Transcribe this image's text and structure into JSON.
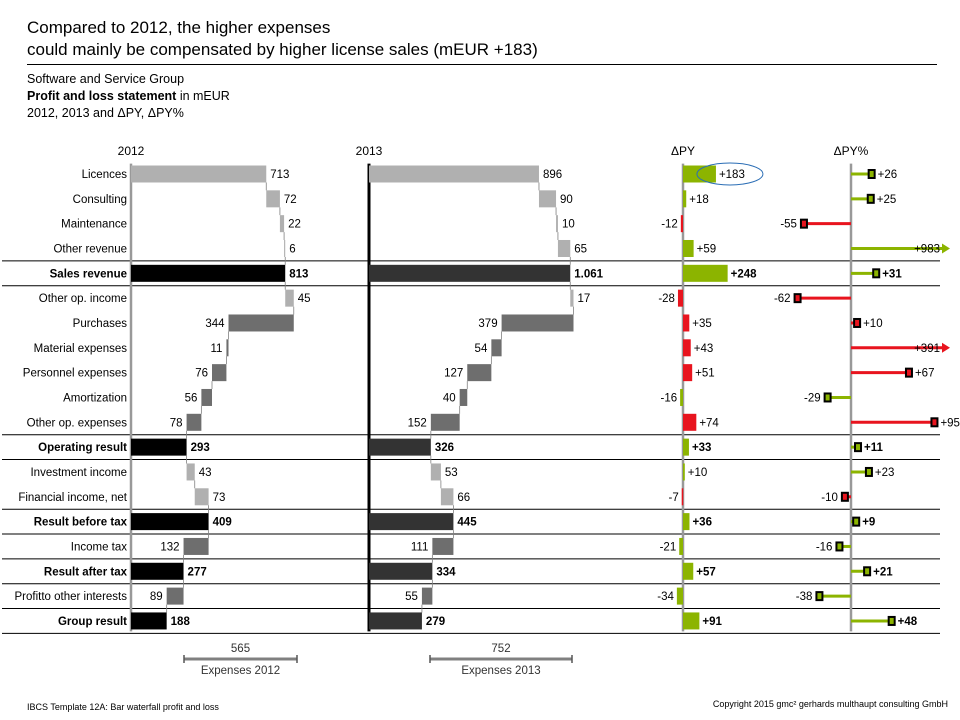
{
  "headline": {
    "line1": "Compared to 2012, the higher expenses",
    "line2": "could mainly be compensated by higher license sales (mEUR +183)"
  },
  "subtitle": {
    "company": "Software and Service Group",
    "statement_bold": "Profit and loss statement",
    "statement_unit": " in mEUR",
    "periods": "2012, 2013 and ΔPY, ΔPY%"
  },
  "footer": {
    "left": "IBCS Template  12A: Bar waterfall profit and loss",
    "right": "Copyright 2015 gmc² gerhards multhaupt consulting GmbH"
  },
  "colors": {
    "total2012": "#000000",
    "total2013": "#333333",
    "revenue": "#b0b0b0",
    "expense": "#6e6e6e",
    "positive": "#8cb400",
    "negative": "#e8141e",
    "axis": "#999999"
  },
  "chart_data": {
    "type": "bar",
    "column_headers": [
      "2012",
      "2013",
      "ΔPY",
      "ΔPY%"
    ],
    "rows": [
      {
        "label": "Licences",
        "kind": "rev",
        "v2012": 713,
        "v2013": 896,
        "l2012": "713",
        "l2013": "896",
        "dpy": 183,
        "dpyl": "+183",
        "dpyp": 26,
        "dpypl": "+26"
      },
      {
        "label": "Consulting",
        "kind": "rev",
        "v2012": 72,
        "v2013": 90,
        "l2012": "72",
        "l2013": "90",
        "dpy": 18,
        "dpyl": "+18",
        "dpyp": 25,
        "dpypl": "+25"
      },
      {
        "label": "Maintenance",
        "kind": "rev",
        "v2012": 22,
        "v2013": 10,
        "l2012": "22",
        "l2013": "10",
        "dpy": -12,
        "dpyl": "-12",
        "dpyp": -55,
        "dpypl": "-55"
      },
      {
        "label": "Other revenue",
        "kind": "rev",
        "v2012": 6,
        "v2013": 65,
        "l2012": "6",
        "l2013": "65",
        "dpy": 59,
        "dpyl": "+59",
        "dpyp": 983,
        "dpypl": "+983",
        "dpyp_clip": true
      },
      {
        "label": "Sales revenue",
        "kind": "total",
        "v2012": 813,
        "v2013": 1061,
        "l2012": "813",
        "l2013": "1.061",
        "dpy": 248,
        "dpyl": "+248",
        "dpyp": 31,
        "dpypl": "+31"
      },
      {
        "label": "Other op. income",
        "kind": "rev",
        "v2012": 45,
        "v2013": 17,
        "l2012": "45",
        "l2013": "17",
        "dpy": -28,
        "dpyl": "-28",
        "dpyp": -62,
        "dpypl": "-62"
      },
      {
        "label": "Purchases",
        "kind": "exp",
        "v2012": 344,
        "v2013": 379,
        "l2012": "344",
        "l2013": "379",
        "dpy": 35,
        "dpyl": "+35",
        "dpyp": 10,
        "dpypl": "+10"
      },
      {
        "label": "Material expenses",
        "kind": "exp",
        "v2012": 11,
        "v2013": 54,
        "l2012": "11",
        "l2013": "54",
        "dpy": 43,
        "dpyl": "+43",
        "dpyp": 391,
        "dpypl": "+391",
        "dpyp_clip": true
      },
      {
        "label": "Personnel expenses",
        "kind": "exp",
        "v2012": 76,
        "v2013": 127,
        "l2012": "76",
        "l2013": "127",
        "dpy": 51,
        "dpyl": "+51",
        "dpyp": 67,
        "dpypl": "+67"
      },
      {
        "label": "Amortization",
        "kind": "exp",
        "v2012": 56,
        "v2013": 40,
        "l2012": "56",
        "l2013": "40",
        "dpy": -16,
        "dpyl": "-16",
        "dpyp": -29,
        "dpypl": "-29"
      },
      {
        "label": "Other op. expenses",
        "kind": "exp",
        "v2012": 78,
        "v2013": 152,
        "l2012": "78",
        "l2013": "152",
        "dpy": 74,
        "dpyl": "+74",
        "dpyp": 95,
        "dpypl": "+95"
      },
      {
        "label": "Operating result",
        "kind": "total",
        "v2012": 293,
        "v2013": 326,
        "l2012": "293",
        "l2013": "326",
        "dpy": 33,
        "dpyl": "+33",
        "dpyp": 11,
        "dpypl": "+11"
      },
      {
        "label": "Investment income",
        "kind": "rev",
        "v2012": 43,
        "v2013": 53,
        "l2012": "43",
        "l2013": "53",
        "dpy": 10,
        "dpyl": "+10",
        "dpyp": 23,
        "dpypl": "+23"
      },
      {
        "label": "Financial income, net",
        "kind": "rev",
        "v2012": 73,
        "v2013": 66,
        "l2012": "73",
        "l2013": "66",
        "dpy": -7,
        "dpyl": "-7",
        "dpyp": -10,
        "dpypl": "-10"
      },
      {
        "label": "Result before tax",
        "kind": "total",
        "v2012": 409,
        "v2013": 445,
        "l2012": "409",
        "l2013": "445",
        "dpy": 36,
        "dpyl": "+36",
        "dpyp": 9,
        "dpypl": "+9"
      },
      {
        "label": "Income tax",
        "kind": "exp",
        "v2012": 132,
        "v2013": 111,
        "l2012": "132",
        "l2013": "111",
        "dpy": -21,
        "dpyl": "-21",
        "dpyp": -16,
        "dpypl": "-16"
      },
      {
        "label": "Result after tax",
        "kind": "total",
        "v2012": 277,
        "v2013": 334,
        "l2012": "277",
        "l2013": "334",
        "dpy": 57,
        "dpyl": "+57",
        "dpyp": 21,
        "dpypl": "+21"
      },
      {
        "label": "Profitto other interests",
        "kind": "exp",
        "v2012": 89,
        "v2013": 55,
        "l2012": "89",
        "l2013": "55",
        "dpy": -34,
        "dpyl": "-34",
        "dpyp": -38,
        "dpypl": "-38"
      },
      {
        "label": "Group result",
        "kind": "total",
        "v2012": 188,
        "v2013": 279,
        "l2012": "188",
        "l2013": "279",
        "dpy": 91,
        "dpyl": "+91",
        "dpyp": 48,
        "dpypl": "+48"
      }
    ],
    "expense_brackets": [
      {
        "value": "565",
        "label": "Expenses 2012"
      },
      {
        "value": "752",
        "label": "Expenses 2013"
      }
    ],
    "highlight": {
      "row": "Licences",
      "column": "ΔPY"
    },
    "dpyp_clip_limit": 100
  }
}
